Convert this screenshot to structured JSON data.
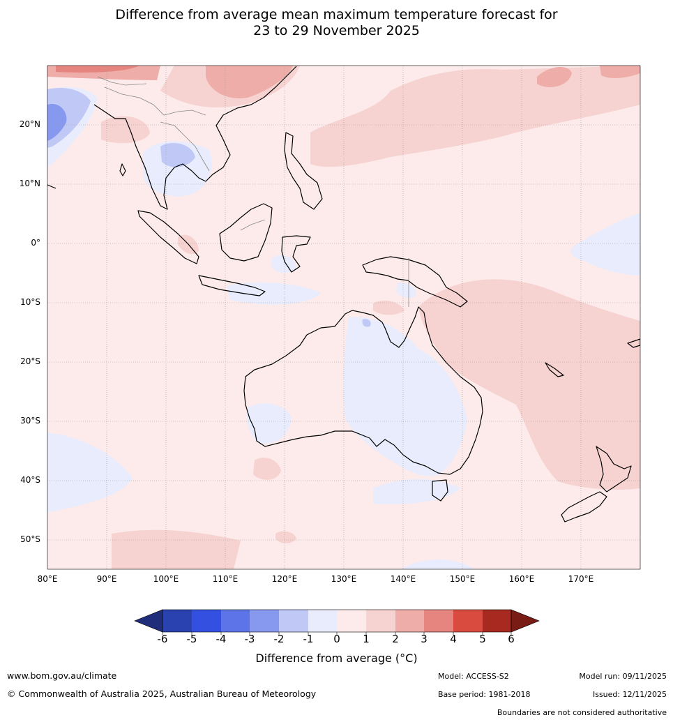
{
  "header": {
    "title_line1": "Difference from average mean maximum temperature forecast for",
    "title_line2": "23 to 29 November 2025"
  },
  "map": {
    "lat_labels": [
      "20°N",
      "10°N",
      "0°",
      "10°S",
      "20°S",
      "30°S",
      "40°S",
      "50°S"
    ],
    "lon_labels": [
      "80°E",
      "90°E",
      "100°E",
      "110°E",
      "120°E",
      "130°E",
      "140°E",
      "150°E",
      "160°E",
      "170°E"
    ],
    "lat_range": [
      -55,
      30
    ],
    "lon_range": [
      80,
      180
    ]
  },
  "legend": {
    "tick_labels": [
      "-6",
      "-5",
      "-4",
      "-3",
      "-2",
      "-1",
      "0",
      "1",
      "2",
      "3",
      "4",
      "5",
      "6"
    ],
    "colors": [
      "#1f2d7a",
      "#2a41b0",
      "#3350e0",
      "#5d74e8",
      "#8799ef",
      "#c0c8f6",
      "#e8ecfc",
      "#fcebea",
      "#f6d2d0",
      "#eeada9",
      "#e6857f",
      "#d94b3f",
      "#a8291f",
      "#7a1c16"
    ],
    "title": "Difference from average (°C)"
  },
  "footer": {
    "website": "www.bom.gov.au/climate",
    "copyright": "© Commonwealth of Australia 2025, Australian Bureau of Meteorology",
    "model": "Model: ACCESS-S2",
    "base_period": "Base period: 1981-2018",
    "model_run": "Model run: 09/11/2025",
    "issued": "Issued: 12/11/2025",
    "boundaries_note": "Boundaries are not considered authoritative"
  }
}
